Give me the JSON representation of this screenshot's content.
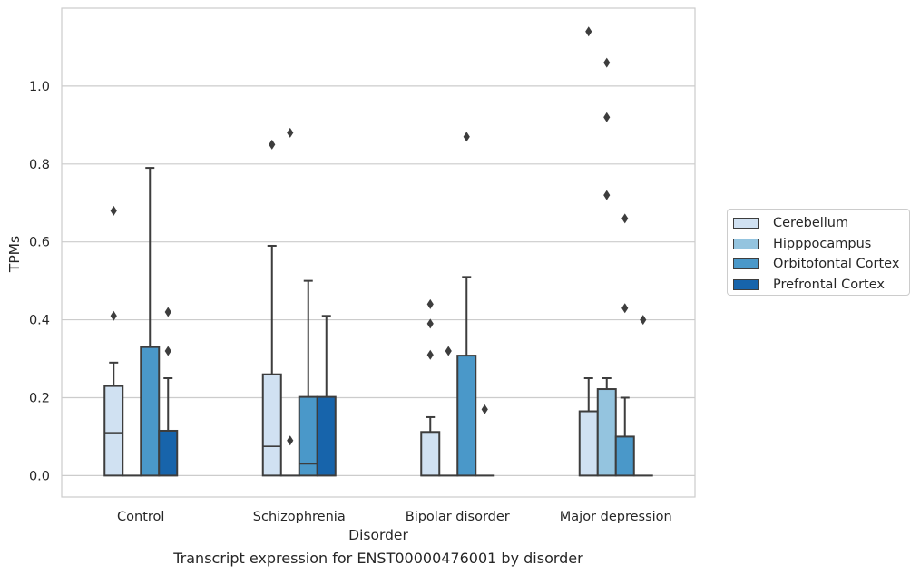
{
  "caption": "Transcript expression for ENST00000476001 by disorder",
  "chart_data": {
    "type": "box",
    "xlabel": "Disorder",
    "ylabel": "TPMs",
    "ylim": [
      -0.055,
      1.2
    ],
    "yticks": [
      0.0,
      0.2,
      0.4,
      0.6,
      0.8,
      1.0
    ],
    "ytick_labels": [
      "0.0",
      "0.2",
      "0.4",
      "0.6",
      "0.8",
      "1.0"
    ],
    "grid": "horizontal",
    "legend_position": "right",
    "categories": [
      "Control",
      "Schizophrenia",
      "Bipolar disorder",
      "Major depression"
    ],
    "series": [
      {
        "name": "Cerebellum",
        "color": "#d0e1f2",
        "boxes": [
          {
            "q1": 0.0,
            "median": 0.11,
            "q3": 0.23,
            "whisker_low": 0.0,
            "whisker_high": 0.29,
            "outliers": [
              0.68,
              0.41
            ]
          },
          {
            "q1": 0.0,
            "median": 0.075,
            "q3": 0.26,
            "whisker_low": 0.0,
            "whisker_high": 0.59,
            "outliers": [
              0.85
            ]
          },
          {
            "q1": 0.0,
            "median": 0.0,
            "q3": 0.112,
            "whisker_low": 0.0,
            "whisker_high": 0.15,
            "outliers": [
              0.44,
              0.39,
              0.31
            ]
          },
          {
            "q1": 0.0,
            "median": 0.0,
            "q3": 0.165,
            "whisker_low": 0.0,
            "whisker_high": 0.25,
            "outliers": [
              1.14
            ]
          }
        ]
      },
      {
        "name": "Hipppocampus",
        "color": "#94c4df",
        "boxes": [
          {
            "q1": 0.0,
            "median": 0.0,
            "q3": 0.0,
            "whisker_low": 0.0,
            "whisker_high": 0.0,
            "outliers": []
          },
          {
            "q1": 0.0,
            "median": 0.0,
            "q3": 0.0,
            "whisker_low": 0.0,
            "whisker_high": 0.0,
            "outliers": [
              0.88,
              0.09
            ]
          },
          {
            "q1": 0.0,
            "median": 0.0,
            "q3": 0.0,
            "whisker_low": 0.0,
            "whisker_high": 0.0,
            "outliers": [
              0.32
            ]
          },
          {
            "q1": 0.0,
            "median": 0.0,
            "q3": 0.222,
            "whisker_low": 0.0,
            "whisker_high": 0.25,
            "outliers": [
              1.06,
              0.92,
              0.72
            ]
          }
        ]
      },
      {
        "name": "Orbitofontal Cortex",
        "color": "#4a98c9",
        "boxes": [
          {
            "q1": 0.0,
            "median": 0.0,
            "q3": 0.33,
            "whisker_low": 0.0,
            "whisker_high": 0.79,
            "outliers": []
          },
          {
            "q1": 0.0,
            "median": 0.03,
            "q3": 0.202,
            "whisker_low": 0.0,
            "whisker_high": 0.5,
            "outliers": []
          },
          {
            "q1": 0.0,
            "median": 0.0,
            "q3": 0.308,
            "whisker_low": 0.0,
            "whisker_high": 0.51,
            "outliers": [
              0.87
            ]
          },
          {
            "q1": 0.0,
            "median": 0.0,
            "q3": 0.1,
            "whisker_low": 0.0,
            "whisker_high": 0.2,
            "outliers": [
              0.66,
              0.43
            ]
          }
        ]
      },
      {
        "name": "Prefrontal Cortex",
        "color": "#1764ab",
        "boxes": [
          {
            "q1": 0.0,
            "median": 0.0,
            "q3": 0.115,
            "whisker_low": 0.0,
            "whisker_high": 0.25,
            "outliers": [
              0.42,
              0.32
            ]
          },
          {
            "q1": 0.0,
            "median": 0.0,
            "q3": 0.202,
            "whisker_low": 0.0,
            "whisker_high": 0.41,
            "outliers": []
          },
          {
            "q1": 0.0,
            "median": 0.0,
            "q3": 0.0,
            "whisker_low": 0.0,
            "whisker_high": 0.0,
            "outliers": [
              0.17
            ]
          },
          {
            "q1": 0.0,
            "median": 0.0,
            "q3": 0.0,
            "whisker_low": 0.0,
            "whisker_high": 0.0,
            "outliers": [
              0.4
            ]
          }
        ]
      }
    ]
  }
}
